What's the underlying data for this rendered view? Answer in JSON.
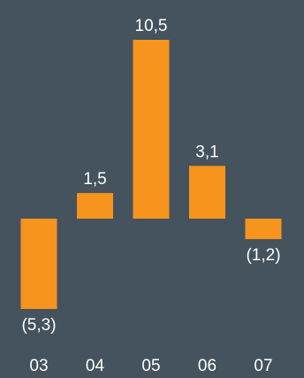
{
  "colors": {
    "background": "#44535e",
    "bar": "#f7941d",
    "text": "#ffffff"
  },
  "chart_data": {
    "type": "bar",
    "title": "",
    "xlabel": "",
    "ylabel": "",
    "categories": [
      "03",
      "04",
      "05",
      "06",
      "07"
    ],
    "values": [
      -5.3,
      1.5,
      10.5,
      3.1,
      -1.2
    ],
    "data_labels": [
      "(5,3)",
      "1,5",
      "10,5",
      "3,1",
      "(1,2)"
    ],
    "ylim": [
      -5.3,
      10.5
    ],
    "grid": false,
    "legend": "none"
  }
}
